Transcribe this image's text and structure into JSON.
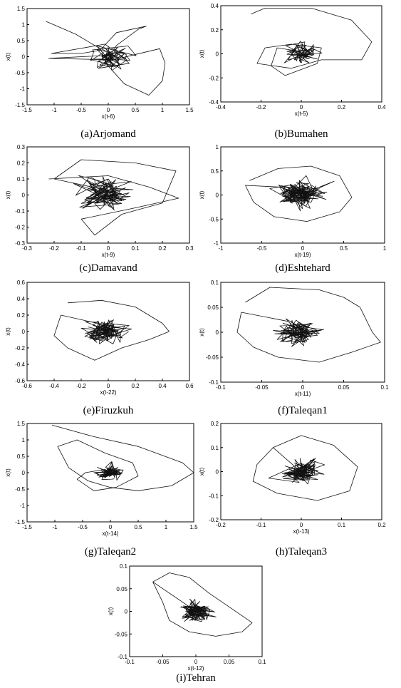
{
  "chart_data": [
    {
      "type": "scatter",
      "title": "(a)Arjomand",
      "xlabel": "x(t-6)",
      "ylabel": "x(t)",
      "xlim": [
        -1.5,
        1.5
      ],
      "ylim": [
        -1.5,
        1.5
      ],
      "xticks": [
        "-1.5",
        "-1",
        "-0.5",
        "0",
        "0.5",
        "1",
        "1.5"
      ],
      "yticks": [
        "-1.5",
        "-1",
        "-0.5",
        "0",
        "0.5",
        "1",
        "1.5"
      ],
      "loop": [
        [
          -1.15,
          1.1
        ],
        [
          -0.6,
          0.7
        ],
        [
          -0.25,
          0.35
        ],
        [
          0.1,
          0.05
        ],
        [
          -1.1,
          -0.05
        ],
        [
          0.1,
          -0.1
        ],
        [
          0.45,
          0.05
        ],
        [
          0.95,
          0.25
        ],
        [
          1.05,
          -0.2
        ],
        [
          1.0,
          -0.75
        ],
        [
          0.75,
          -1.2
        ],
        [
          0.3,
          -0.85
        ],
        [
          -0.05,
          -0.2
        ],
        [
          0.15,
          0.35
        ],
        [
          0.55,
          0.85
        ],
        [
          0.7,
          0.95
        ],
        [
          0.15,
          0.75
        ],
        [
          -0.15,
          0.2
        ],
        [
          -0.5,
          0.1
        ],
        [
          -1.05,
          0.1
        ]
      ],
      "center": [
        0,
        0
      ],
      "spread": 0.25,
      "noise_points": 70
    },
    {
      "type": "scatter",
      "title": "(b)Bumahen",
      "xlabel": "x(t-5)",
      "ylabel": "x(t)",
      "xlim": [
        -0.4,
        0.4
      ],
      "ylim": [
        -0.4,
        0.4
      ],
      "xticks": [
        "-0.4",
        "-0.2",
        "0",
        "0.2",
        "0.4"
      ],
      "yticks": [
        "-0.4",
        "-0.2",
        "0",
        "0.2",
        "0.4"
      ],
      "loop": [
        [
          -0.25,
          0.33
        ],
        [
          -0.18,
          0.38
        ],
        [
          0.05,
          0.38
        ],
        [
          0.25,
          0.28
        ],
        [
          0.35,
          0.1
        ],
        [
          0.3,
          -0.05
        ],
        [
          0.1,
          -0.05
        ],
        [
          -0.05,
          -0.12
        ],
        [
          -0.22,
          -0.08
        ],
        [
          -0.18,
          0.05
        ],
        [
          -0.05,
          0.08
        ],
        [
          0.1,
          0.05
        ],
        [
          0.08,
          -0.08
        ],
        [
          -0.08,
          -0.18
        ],
        [
          -0.15,
          -0.1
        ],
        [
          -0.12,
          0.05
        ]
      ],
      "center": [
        0,
        0
      ],
      "spread": 0.06,
      "noise_points": 70
    },
    {
      "type": "scatter",
      "title": "(c)Damavand",
      "xlabel": "x(t-9)",
      "ylabel": "x(t)",
      "xlim": [
        -0.3,
        0.3
      ],
      "ylim": [
        -0.3,
        0.3
      ],
      "xticks": [
        "-0.3",
        "-0.2",
        "-0.1",
        "0",
        "0.1",
        "0.2",
        "0.3"
      ],
      "yticks": [
        "-0.3",
        "-0.2",
        "-0.1",
        "0",
        "0.1",
        "0.2",
        "0.3"
      ],
      "loop": [
        [
          -0.22,
          0.1
        ],
        [
          0.0,
          0.12
        ],
        [
          0.15,
          0.05
        ],
        [
          0.26,
          -0.02
        ],
        [
          0.1,
          -0.08
        ],
        [
          -0.1,
          -0.15
        ],
        [
          -0.05,
          -0.25
        ],
        [
          0.05,
          -0.12
        ],
        [
          0.2,
          -0.05
        ],
        [
          0.25,
          0.15
        ],
        [
          0.1,
          0.2
        ],
        [
          -0.1,
          0.22
        ],
        [
          -0.2,
          0.1
        ]
      ],
      "center": [
        -0.02,
        0.0
      ],
      "spread": 0.07,
      "noise_points": 110
    },
    {
      "type": "scatter",
      "title": "(d)Eshtehard",
      "xlabel": "x(t-19)",
      "ylabel": "x(t)",
      "xlim": [
        -1,
        1
      ],
      "ylim": [
        -1,
        1
      ],
      "xticks": [
        "-1",
        "-0.5",
        "0",
        "0.5",
        "1"
      ],
      "yticks": [
        "-1",
        "-0.5",
        "0",
        "0.5",
        "1"
      ],
      "loop": [
        [
          -0.65,
          0.3
        ],
        [
          -0.3,
          0.55
        ],
        [
          0.1,
          0.6
        ],
        [
          0.45,
          0.4
        ],
        [
          0.6,
          -0.05
        ],
        [
          0.45,
          -0.35
        ],
        [
          0.05,
          -0.55
        ],
        [
          -0.35,
          -0.45
        ],
        [
          -0.6,
          -0.15
        ],
        [
          -0.7,
          0.2
        ]
      ],
      "center": [
        -0.05,
        0.0
      ],
      "spread": 0.2,
      "noise_points": 140
    },
    {
      "type": "scatter",
      "title": "(e)Firuzkuh",
      "xlabel": "x(t-22)",
      "ylabel": "x(t)",
      "xlim": [
        -0.6,
        0.6
      ],
      "ylim": [
        -0.6,
        0.6
      ],
      "xticks": [
        "-0.6",
        "-0.4",
        "-0.2",
        "0",
        "0.2",
        "0.4",
        "0.6"
      ],
      "yticks": [
        "-0.6",
        "-0.4",
        "-0.2",
        "0",
        "0.2",
        "0.4",
        "0.6"
      ],
      "loop": [
        [
          -0.3,
          0.35
        ],
        [
          -0.05,
          0.38
        ],
        [
          0.2,
          0.3
        ],
        [
          0.4,
          0.1
        ],
        [
          0.45,
          0.0
        ],
        [
          0.3,
          -0.1
        ],
        [
          0.1,
          -0.2
        ],
        [
          -0.1,
          -0.35
        ],
        [
          -0.3,
          -0.2
        ],
        [
          -0.4,
          -0.05
        ],
        [
          -0.35,
          0.2
        ]
      ],
      "center": [
        -0.02,
        0.0
      ],
      "spread": 0.1,
      "noise_points": 130
    },
    {
      "type": "scatter",
      "title": "(f)Taleqan1",
      "xlabel": "x(t-11)",
      "ylabel": "x(t)",
      "xlim": [
        -0.1,
        0.1
      ],
      "ylim": [
        -0.1,
        0.1
      ],
      "xticks": [
        "-0.1",
        "-0.05",
        "0",
        "0.05",
        "0.1"
      ],
      "yticks": [
        "-0.1",
        "-0.05",
        "0",
        "0.05",
        "0.1"
      ],
      "loop": [
        [
          -0.07,
          0.06
        ],
        [
          -0.04,
          0.09
        ],
        [
          0.02,
          0.085
        ],
        [
          0.05,
          0.07
        ],
        [
          0.07,
          0.05
        ],
        [
          0.085,
          0.0
        ],
        [
          0.095,
          -0.02
        ],
        [
          0.06,
          -0.04
        ],
        [
          0.02,
          -0.06
        ],
        [
          -0.03,
          -0.05
        ],
        [
          -0.06,
          -0.03
        ],
        [
          -0.08,
          0.0
        ],
        [
          -0.075,
          0.04
        ]
      ],
      "center": [
        -0.005,
        0.0
      ],
      "spread": 0.018,
      "noise_points": 110
    },
    {
      "type": "scatter",
      "title": "(g)Taleqan2",
      "xlabel": "x(t-14)",
      "ylabel": "x(t)",
      "xlim": [
        -1.5,
        1.5
      ],
      "ylim": [
        -1.5,
        1.5
      ],
      "xticks": [
        "-1.5",
        "-1",
        "-0.5",
        "0",
        "0.5",
        "1",
        "1.5"
      ],
      "yticks": [
        "-1.5",
        "-1",
        "-0.5",
        "0",
        "0.5",
        "1",
        "1.5"
      ],
      "loop": [
        [
          -1.05,
          1.45
        ],
        [
          -0.3,
          1.1
        ],
        [
          0.5,
          0.8
        ],
        [
          1.3,
          0.3
        ],
        [
          1.5,
          0.0
        ],
        [
          1.1,
          -0.4
        ],
        [
          0.5,
          -0.55
        ],
        [
          0.0,
          -0.45
        ],
        [
          -0.4,
          -0.25
        ],
        [
          -0.75,
          0.15
        ],
        [
          -0.95,
          0.8
        ],
        [
          -0.6,
          1.0
        ],
        [
          -0.1,
          0.6
        ],
        [
          0.4,
          0.3
        ],
        [
          0.5,
          -0.1
        ],
        [
          0.1,
          -0.45
        ],
        [
          -0.3,
          -0.55
        ],
        [
          -0.6,
          -0.2
        ],
        [
          -0.45,
          0.0
        ],
        [
          -0.1,
          0.1
        ]
      ],
      "center": [
        0,
        0
      ],
      "spread": 0.18,
      "noise_points": 80
    },
    {
      "type": "scatter",
      "title": "(h)Taleqan3",
      "xlabel": "x(t-13)",
      "ylabel": "x(t)",
      "xlim": [
        -0.2,
        0.2
      ],
      "ylim": [
        -0.2,
        0.2
      ],
      "xticks": [
        "-0.2",
        "-0.1",
        "0",
        "0.1",
        "0.2"
      ],
      "yticks": [
        "-0.2",
        "-0.1",
        "0",
        "0.1",
        "0.2"
      ],
      "loop": [
        [
          -0.07,
          0.1
        ],
        [
          0.0,
          0.15
        ],
        [
          0.08,
          0.11
        ],
        [
          0.14,
          0.02
        ],
        [
          0.12,
          -0.08
        ],
        [
          0.04,
          -0.12
        ],
        [
          -0.06,
          -0.09
        ],
        [
          -0.12,
          -0.04
        ],
        [
          -0.11,
          0.03
        ],
        [
          -0.07,
          0.1
        ]
      ],
      "center": [
        0.0,
        0.0
      ],
      "spread": 0.035,
      "noise_points": 120
    },
    {
      "type": "scatter",
      "title": "(i)Tehran",
      "xlabel": "x(t-12)",
      "ylabel": "x(t)",
      "xlim": [
        -0.1,
        0.1
      ],
      "ylim": [
        -0.1,
        0.1
      ],
      "xticks": [
        "-0.1",
        "-0.05",
        "0",
        "0.05",
        "0.1"
      ],
      "yticks": [
        "-0.1",
        "-0.05",
        "0",
        "0.05",
        "0.1"
      ],
      "loop": [
        [
          -0.065,
          0.065
        ],
        [
          -0.04,
          0.085
        ],
        [
          -0.01,
          0.075
        ],
        [
          0.02,
          0.04
        ],
        [
          0.05,
          0.01
        ],
        [
          0.085,
          -0.025
        ],
        [
          0.07,
          -0.045
        ],
        [
          0.03,
          -0.055
        ],
        [
          -0.01,
          -0.045
        ],
        [
          -0.04,
          -0.02
        ],
        [
          -0.05,
          0.02
        ],
        [
          -0.065,
          0.065
        ]
      ],
      "center": [
        0.0,
        0.0
      ],
      "spread": 0.015,
      "noise_points": 130
    }
  ]
}
